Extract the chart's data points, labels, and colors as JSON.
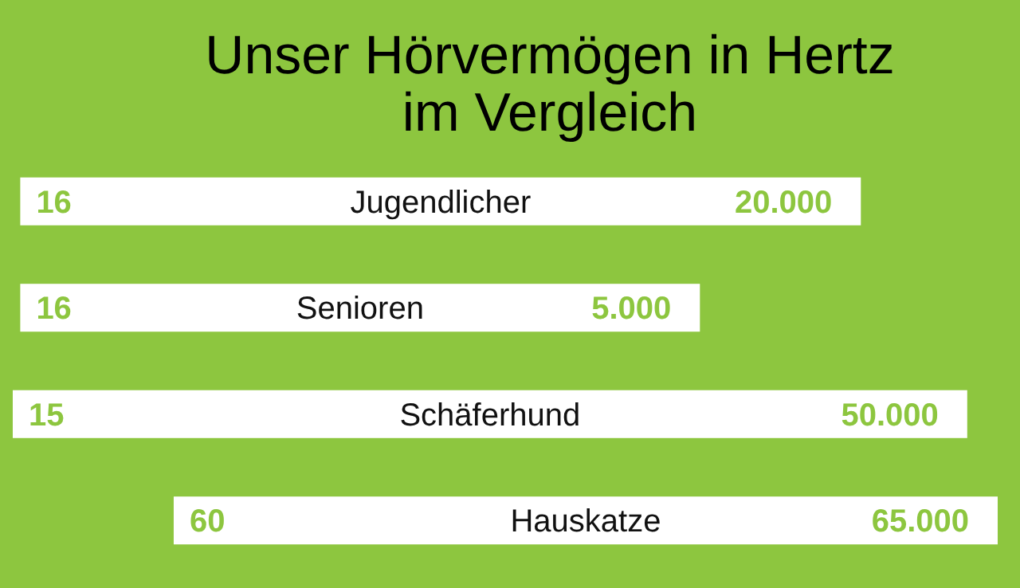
{
  "chart_data": {
    "type": "other",
    "color": "#ffffff",
    "title": "Unser Hörvermögen in Hertz im Vergleich",
    "categories": [
      "Jugendlicher",
      "Senioren",
      "Schäferhund",
      "Hauskatze"
    ],
    "series": [
      {
        "values": [
          16,
          16,
          15,
          60
        ],
        "value_labels": [
          "16",
          "16",
          "15",
          "60"
        ]
      },
      {
        "values": [
          20000,
          5000,
          50000,
          65000
        ],
        "value_labels": [
          "20.000",
          "5.000",
          "50.000",
          "65.000"
        ]
      }
    ]
  }
}
